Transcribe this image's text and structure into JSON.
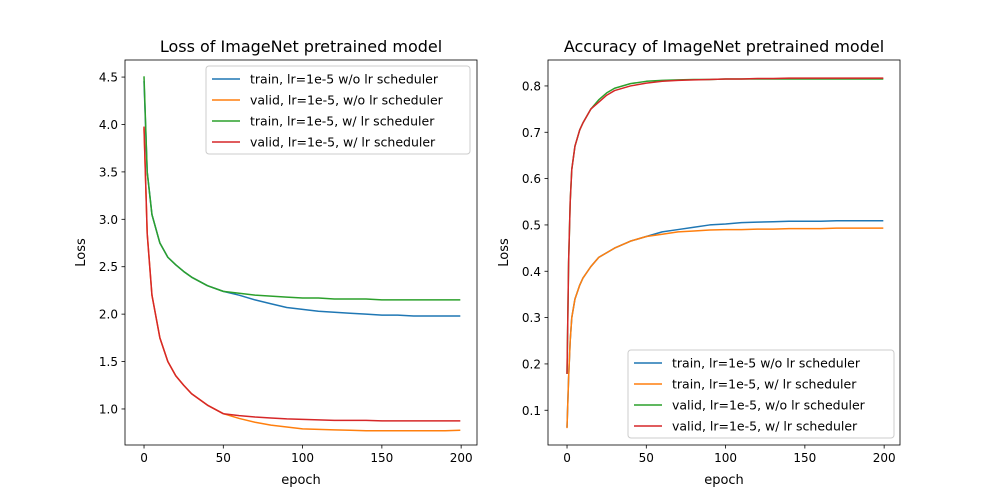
{
  "chart_data": [
    {
      "type": "line",
      "title": "Loss of ImageNet pretrained model",
      "xlabel": "epoch",
      "ylabel": "Loss",
      "xlim": [
        -12,
        210
      ],
      "ylim": [
        0.62,
        4.68
      ],
      "xticks": [
        0,
        50,
        100,
        150,
        200
      ],
      "yticks": [
        1.0,
        1.5,
        2.0,
        2.5,
        3.0,
        3.5,
        4.0,
        4.5
      ],
      "ytick_labels": [
        "1.0",
        "1.5",
        "2.0",
        "2.5",
        "3.0",
        "3.5",
        "4.0",
        "4.5"
      ],
      "grid": false,
      "legend_position": "top-right",
      "series": [
        {
          "name": "train, lr=1e-5 w/o lr scheduler",
          "color": "#1f77b4",
          "x": [
            0,
            2,
            5,
            10,
            15,
            20,
            25,
            30,
            40,
            50,
            60,
            70,
            80,
            90,
            100,
            110,
            120,
            130,
            140,
            150,
            160,
            170,
            180,
            190,
            199
          ],
          "y": [
            4.45,
            3.5,
            3.05,
            2.75,
            2.6,
            2.52,
            2.45,
            2.39,
            2.3,
            2.24,
            2.2,
            2.15,
            2.11,
            2.07,
            2.05,
            2.03,
            2.02,
            2.01,
            2.0,
            1.99,
            1.99,
            1.98,
            1.98,
            1.98,
            1.98
          ]
        },
        {
          "name": "valid, lr=1e-5, w/o lr scheduler",
          "color": "#ff7f0e",
          "x": [
            0,
            2,
            5,
            10,
            15,
            20,
            25,
            30,
            40,
            50,
            60,
            70,
            80,
            90,
            100,
            110,
            120,
            130,
            140,
            150,
            160,
            170,
            180,
            190,
            199
          ],
          "y": [
            3.95,
            2.85,
            2.2,
            1.75,
            1.5,
            1.35,
            1.25,
            1.16,
            1.04,
            0.95,
            0.9,
            0.86,
            0.83,
            0.81,
            0.79,
            0.785,
            0.78,
            0.775,
            0.77,
            0.77,
            0.77,
            0.77,
            0.77,
            0.77,
            0.775
          ]
        },
        {
          "name": "train, lr=1e-5, w/ lr scheduler",
          "color": "#2ca02c",
          "x": [
            0,
            2,
            5,
            10,
            15,
            20,
            25,
            30,
            40,
            50,
            60,
            70,
            80,
            90,
            100,
            110,
            120,
            130,
            140,
            150,
            160,
            170,
            180,
            190,
            199
          ],
          "y": [
            4.5,
            3.5,
            3.05,
            2.75,
            2.6,
            2.52,
            2.45,
            2.39,
            2.3,
            2.24,
            2.22,
            2.2,
            2.19,
            2.18,
            2.17,
            2.17,
            2.16,
            2.16,
            2.16,
            2.15,
            2.15,
            2.15,
            2.15,
            2.15,
            2.15
          ]
        },
        {
          "name": "valid, lr=1e-5, w/ lr scheduler",
          "color": "#d62728",
          "x": [
            0,
            2,
            5,
            10,
            15,
            20,
            25,
            30,
            40,
            50,
            60,
            70,
            80,
            90,
            100,
            110,
            120,
            130,
            140,
            150,
            160,
            170,
            180,
            190,
            199
          ],
          "y": [
            3.97,
            2.85,
            2.2,
            1.75,
            1.5,
            1.35,
            1.25,
            1.16,
            1.04,
            0.95,
            0.93,
            0.915,
            0.905,
            0.895,
            0.89,
            0.885,
            0.88,
            0.88,
            0.88,
            0.875,
            0.875,
            0.875,
            0.875,
            0.875,
            0.875
          ]
        }
      ]
    },
    {
      "type": "line",
      "title": "Accuracy of ImageNet pretrained model",
      "xlabel": "epoch",
      "ylabel": "Loss",
      "xlim": [
        -12,
        210
      ],
      "ylim": [
        0.025,
        0.856
      ],
      "xticks": [
        0,
        50,
        100,
        150,
        200
      ],
      "yticks": [
        0.1,
        0.2,
        0.3,
        0.4,
        0.5,
        0.6,
        0.7,
        0.8
      ],
      "ytick_labels": [
        "0.1",
        "0.2",
        "0.3",
        "0.4",
        "0.5",
        "0.6",
        "0.7",
        "0.8"
      ],
      "grid": false,
      "legend_position": "bottom-right",
      "series": [
        {
          "name": "train, lr=1e-5 w/o lr scheduler",
          "color": "#1f77b4",
          "x": [
            0,
            1,
            2,
            3,
            5,
            8,
            10,
            15,
            20,
            25,
            30,
            40,
            50,
            60,
            70,
            80,
            90,
            100,
            110,
            120,
            130,
            140,
            150,
            160,
            170,
            180,
            190,
            199
          ],
          "y": [
            0.065,
            0.17,
            0.25,
            0.3,
            0.34,
            0.37,
            0.385,
            0.41,
            0.43,
            0.44,
            0.45,
            0.465,
            0.475,
            0.485,
            0.49,
            0.495,
            0.5,
            0.502,
            0.505,
            0.506,
            0.507,
            0.508,
            0.508,
            0.508,
            0.509,
            0.509,
            0.509,
            0.509
          ]
        },
        {
          "name": "train, lr=1e-5, w/ lr scheduler",
          "color": "#ff7f0e",
          "x": [
            0,
            1,
            2,
            3,
            5,
            8,
            10,
            15,
            20,
            25,
            30,
            40,
            50,
            60,
            70,
            80,
            90,
            100,
            110,
            120,
            130,
            140,
            150,
            160,
            170,
            180,
            190,
            199
          ],
          "y": [
            0.063,
            0.17,
            0.25,
            0.3,
            0.34,
            0.37,
            0.385,
            0.41,
            0.43,
            0.44,
            0.45,
            0.465,
            0.475,
            0.48,
            0.485,
            0.487,
            0.489,
            0.49,
            0.49,
            0.491,
            0.491,
            0.492,
            0.492,
            0.492,
            0.493,
            0.493,
            0.493,
            0.493
          ]
        },
        {
          "name": "valid, lr=1e-5, w/o lr scheduler",
          "color": "#2ca02c",
          "x": [
            0,
            1,
            2,
            3,
            5,
            8,
            10,
            15,
            20,
            25,
            30,
            40,
            50,
            60,
            70,
            80,
            90,
            100,
            110,
            120,
            130,
            140,
            150,
            160,
            170,
            180,
            190,
            199
          ],
          "y": [
            0.18,
            0.42,
            0.55,
            0.62,
            0.67,
            0.705,
            0.72,
            0.75,
            0.77,
            0.785,
            0.795,
            0.805,
            0.81,
            0.812,
            0.813,
            0.814,
            0.814,
            0.815,
            0.815,
            0.815,
            0.815,
            0.815,
            0.815,
            0.815,
            0.815,
            0.815,
            0.815,
            0.815
          ]
        },
        {
          "name": "valid, lr=1e-5, w/ lr scheduler",
          "color": "#d62728",
          "x": [
            0,
            1,
            2,
            3,
            5,
            8,
            10,
            15,
            20,
            25,
            30,
            40,
            50,
            60,
            70,
            80,
            90,
            100,
            110,
            120,
            130,
            140,
            150,
            160,
            170,
            180,
            190,
            199
          ],
          "y": [
            0.18,
            0.42,
            0.55,
            0.62,
            0.67,
            0.705,
            0.72,
            0.75,
            0.765,
            0.78,
            0.79,
            0.8,
            0.806,
            0.81,
            0.812,
            0.813,
            0.814,
            0.815,
            0.815,
            0.816,
            0.816,
            0.817,
            0.817,
            0.817,
            0.817,
            0.817,
            0.817,
            0.817
          ]
        }
      ]
    }
  ]
}
